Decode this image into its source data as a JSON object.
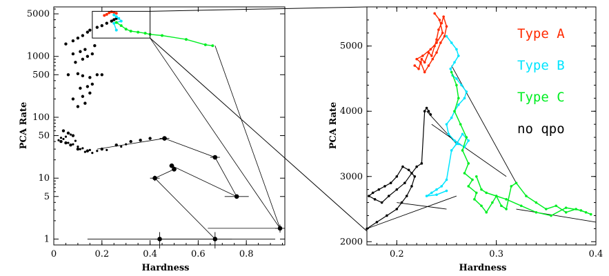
{
  "chart_data": [
    {
      "type": "scatter",
      "xlabel": "Hardness",
      "ylabel": "PCA Rate",
      "xlim": [
        0,
        0.96
      ],
      "ylim": [
        0.8,
        6500
      ],
      "log_y": true,
      "x_ticks": [
        0,
        0.2,
        0.4,
        0.6,
        0.8
      ],
      "x_tick_labels": [
        "0",
        "0.2",
        "0.4",
        "0.6",
        "0.8"
      ],
      "y_ticks": [
        1,
        5,
        10,
        50,
        100,
        500,
        1000,
        5000
      ],
      "y_tick_labels": [
        "1",
        "5",
        "10",
        "50",
        "100",
        "500",
        "1000",
        "5000"
      ],
      "zoom_box": {
        "x": [
          0.16,
          0.4
        ],
        "y": [
          2000,
          5500
        ]
      },
      "series": [
        {
          "color": "#000000",
          "marker": "points",
          "x": [
            0.05,
            0.08,
            0.1,
            0.12,
            0.14,
            0.15,
            0.18,
            0.2,
            0.22,
            0.24,
            0.25,
            0.26,
            0.08,
            0.11,
            0.13,
            0.17,
            0.09,
            0.12,
            0.14,
            0.16,
            0.06,
            0.1,
            0.12,
            0.15,
            0.18,
            0.2,
            0.11,
            0.14,
            0.16,
            0.08,
            0.12,
            0.15,
            0.1,
            0.13,
            0.04,
            0.06,
            0.08,
            0.03,
            0.05,
            0.07,
            0.1,
            0.14,
            0.2,
            0.26,
            0.32,
            0.36,
            0.4
          ],
          "y": [
            1600,
            1800,
            2000,
            2200,
            2500,
            2700,
            3000,
            3200,
            3500,
            3800,
            4000,
            4200,
            1100,
            1200,
            1300,
            1500,
            800,
            900,
            1000,
            1100,
            500,
            520,
            480,
            450,
            500,
            500,
            300,
            320,
            350,
            200,
            220,
            250,
            150,
            170,
            60,
            55,
            50,
            40,
            38,
            35,
            30,
            28,
            30,
            35,
            40,
            42,
            45
          ]
        },
        {
          "color": "#000000",
          "marker": "error-circle",
          "x": [
            0.46,
            0.67,
            0.76,
            0.94,
            0.49,
            0.5,
            0.42,
            0.44,
            0.67
          ],
          "y": [
            45,
            22,
            5,
            1.5,
            16,
            14,
            10,
            1,
            1
          ],
          "xerr": [
            0.02,
            0.02,
            0.05,
            0.02,
            0.01,
            0.01,
            0.02,
            0.3,
            0.25
          ],
          "yerr_frac": [
            0.08,
            0.08,
            0.08,
            0.15,
            0.08,
            0.08,
            0.1,
            0.3,
            0.3
          ]
        },
        {
          "color": "#ff2a00",
          "marker": "points",
          "x": [
            0.21,
            0.22,
            0.23,
            0.24,
            0.25,
            0.26
          ],
          "y": [
            4700,
            4900,
            5200,
            5400,
            5300,
            5100
          ]
        },
        {
          "color": "#00e5ff",
          "marker": "points",
          "x": [
            0.25,
            0.26,
            0.27,
            0.28,
            0.25,
            0.26
          ],
          "y": [
            4800,
            4500,
            4200,
            3800,
            3500,
            2700
          ]
        },
        {
          "color": "#00ee22",
          "marker": "points",
          "x": [
            0.26,
            0.28,
            0.3,
            0.32,
            0.35,
            0.38,
            0.4,
            0.45,
            0.55,
            0.63,
            0.66
          ],
          "y": [
            3600,
            3200,
            2800,
            2600,
            2500,
            2400,
            2300,
            2200,
            1900,
            1550,
            1500
          ]
        }
      ]
    },
    {
      "type": "line",
      "xlabel": "Hardness",
      "ylabel": "PCA Rate",
      "xlim": [
        0.17,
        0.4
      ],
      "ylim": [
        1950,
        5600
      ],
      "x_ticks": [
        0.2,
        0.3,
        0.4
      ],
      "x_tick_labels": [
        "0.2",
        "0.3",
        "0.4"
      ],
      "y_ticks": [
        2000,
        3000,
        4000,
        5000
      ],
      "y_tick_labels": [
        "2000",
        "3000",
        "4000",
        "5000"
      ],
      "legend_position": "top-right",
      "series": [
        {
          "name": "Type A",
          "color": "#ff2a00",
          "x": [
            0.218,
            0.222,
            0.225,
            0.228,
            0.232,
            0.235,
            0.238,
            0.24,
            0.242,
            0.245,
            0.247,
            0.25,
            0.248,
            0.244,
            0.24,
            0.236,
            0.232,
            0.228,
            0.224,
            0.22,
            0.226,
            0.234,
            0.24,
            0.246,
            0.243,
            0.238
          ],
          "y": [
            4700,
            4650,
            4800,
            4750,
            4900,
            4850,
            5000,
            5100,
            5250,
            5350,
            5450,
            5300,
            5150,
            5050,
            4900,
            4800,
            4700,
            4600,
            4750,
            4800,
            4850,
            4950,
            5050,
            5200,
            5400,
            5500
          ]
        },
        {
          "name": "Type B",
          "color": "#00e5ff",
          "x": [
            0.25,
            0.255,
            0.26,
            0.262,
            0.258,
            0.254,
            0.256,
            0.26,
            0.265,
            0.27,
            0.268,
            0.262,
            0.258,
            0.255,
            0.25,
            0.252,
            0.258,
            0.262,
            0.268,
            0.272,
            0.266,
            0.26,
            0.255,
            0.25,
            0.245,
            0.24,
            0.235,
            0.23,
            0.24,
            0.25
          ],
          "y": [
            5150,
            5050,
            4950,
            4850,
            4750,
            4650,
            4550,
            4500,
            4400,
            4300,
            4200,
            4100,
            4000,
            3900,
            3800,
            3650,
            3550,
            3500,
            3450,
            3550,
            3650,
            3500,
            3400,
            2950,
            2850,
            2800,
            2750,
            2700,
            2720,
            2780
          ]
        },
        {
          "name": "Type C",
          "color": "#00ee22",
          "x": [
            0.255,
            0.26,
            0.262,
            0.258,
            0.264,
            0.27,
            0.266,
            0.272,
            0.268,
            0.276,
            0.272,
            0.28,
            0.278,
            0.285,
            0.29,
            0.296,
            0.3,
            0.305,
            0.31,
            0.315,
            0.32,
            0.33,
            0.34,
            0.35,
            0.36,
            0.37,
            0.38,
            0.39,
            0.395,
            0.385,
            0.37,
            0.355,
            0.34,
            0.325,
            0.31,
            0.3,
            0.29,
            0.285,
            0.28
          ],
          "y": [
            4600,
            4400,
            4200,
            4000,
            3800,
            3600,
            3400,
            3200,
            3050,
            2950,
            2850,
            2750,
            2650,
            2550,
            2450,
            2600,
            2700,
            2550,
            2500,
            2850,
            2900,
            2700,
            2600,
            2500,
            2550,
            2450,
            2500,
            2450,
            2420,
            2480,
            2520,
            2400,
            2450,
            2550,
            2650,
            2700,
            2750,
            2800,
            3000
          ]
        },
        {
          "name": "no qpo",
          "color": "#000000",
          "x": [
            0.17,
            0.18,
            0.19,
            0.2,
            0.205,
            0.21,
            0.215,
            0.218,
            0.212,
            0.206,
            0.2,
            0.194,
            0.188,
            0.182,
            0.176,
            0.172,
            0.178,
            0.185,
            0.192,
            0.2,
            0.208,
            0.215,
            0.22,
            0.225,
            0.228,
            0.23,
            0.232,
            0.234
          ],
          "y": [
            2200,
            2300,
            2400,
            2500,
            2600,
            2700,
            2850,
            3000,
            3100,
            3150,
            3000,
            2900,
            2850,
            2800,
            2750,
            2700,
            2650,
            2600,
            2700,
            2800,
            2900,
            3050,
            3150,
            3200,
            4000,
            4050,
            4000,
            3950
          ]
        }
      ]
    }
  ]
}
